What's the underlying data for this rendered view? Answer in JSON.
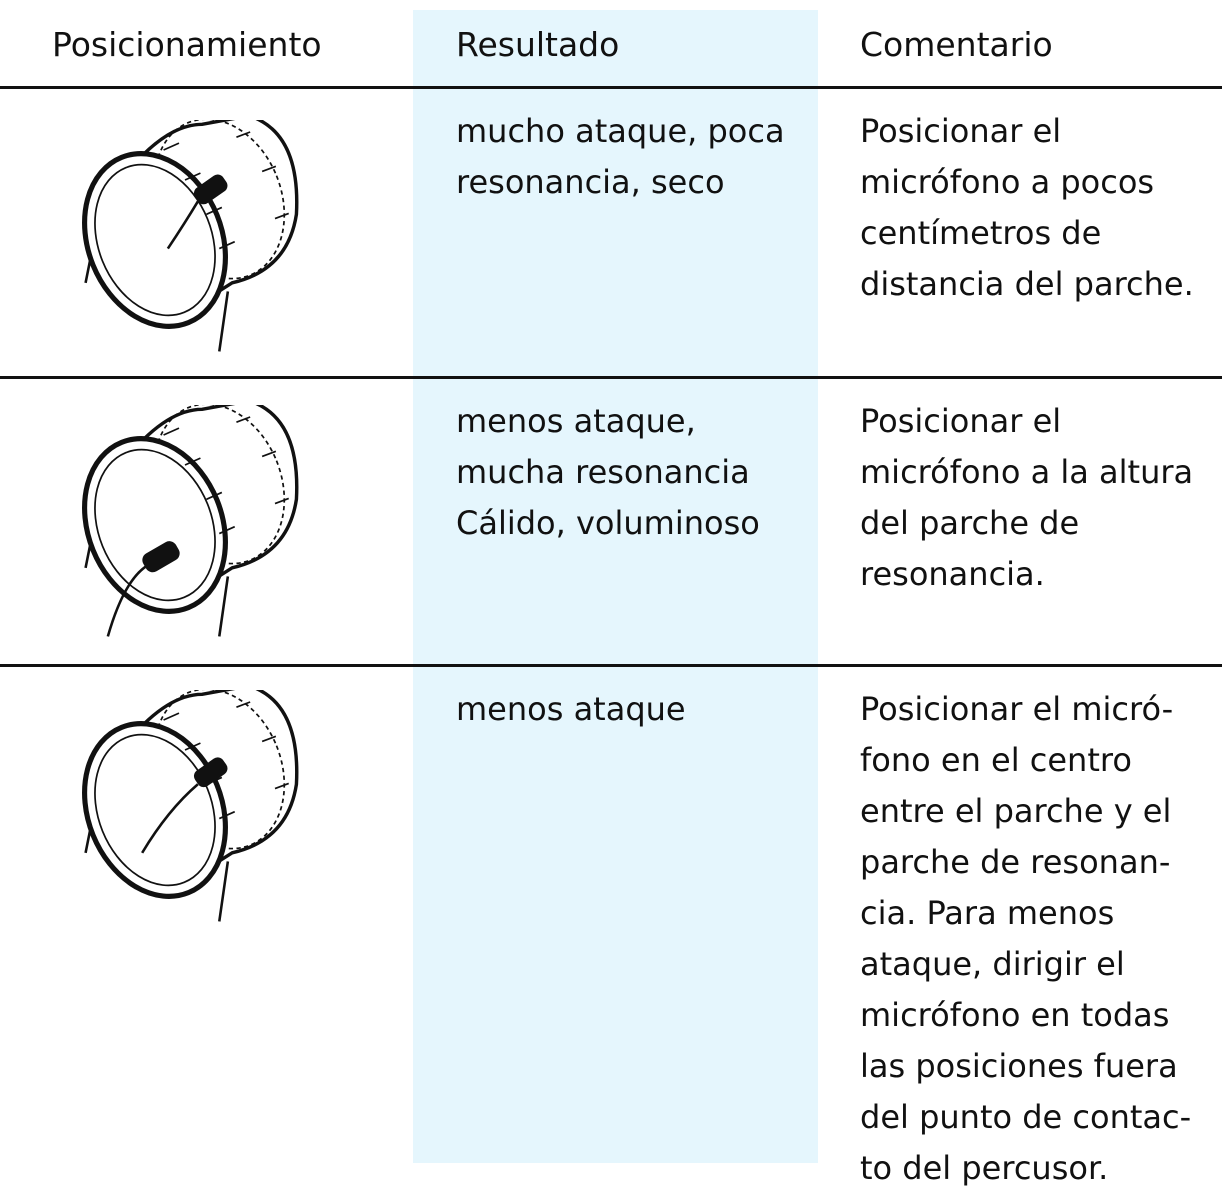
{
  "table": {
    "header": [
      "Posicionamiento",
      "Resultado",
      "Comentario"
    ],
    "rows": [
      {
        "result": [
          "mucho ataque, poca",
          "resonancia, seco"
        ],
        "comment": [
          "Posicionar el",
          "micrófono a pocos",
          "centímetros de",
          "distancia del parche."
        ]
      },
      {
        "result": [
          "menos ataque,",
          "mucha resonancia",
          "Cálido, voluminoso"
        ],
        "comment": [
          "Posicionar el",
          "micrófono a la altura",
          "del parche de",
          "resonancia."
        ]
      },
      {
        "result": [
          "menos ataque"
        ],
        "comment": [
          "Posicionar el micró-",
          "fono en el centro",
          "entre el parche y el",
          "parche de resonan-",
          "cia. Para menos",
          "ataque, dirigir el",
          "micrófono en todas",
          "las posiciones fuera",
          "del punto de contac-",
          "to del percusor."
        ]
      }
    ]
  }
}
